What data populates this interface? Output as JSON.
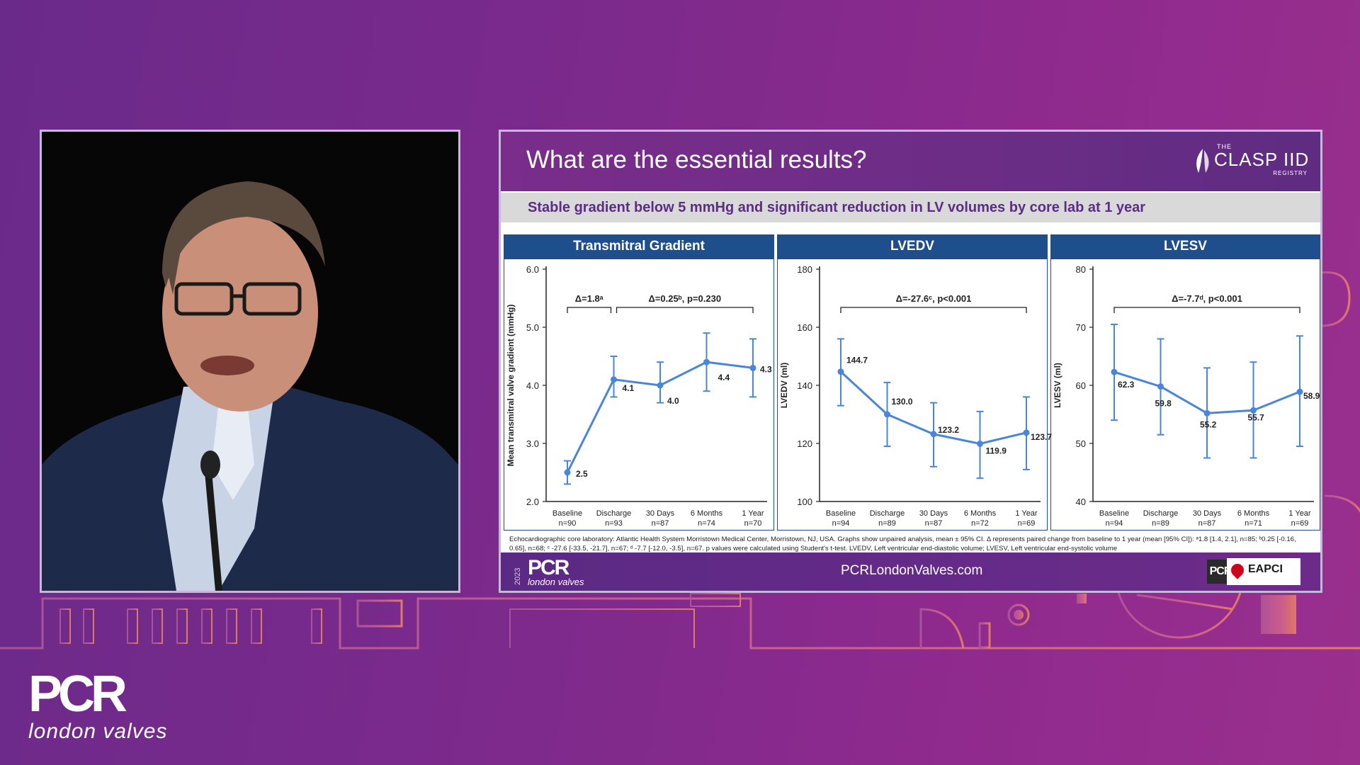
{
  "slide": {
    "title": "What are the essential results?",
    "subtitle": "Stable gradient below 5 mmHg and significant reduction in LV volumes by core lab at 1 year",
    "logo": {
      "the": "THE",
      "name": "CLASP IID",
      "registry": "REGISTRY"
    },
    "footnote": "Echocardiographic core laboratory: Atlantic Health System Morristown Medical Center, Morristown, NJ, USA. Graphs show unpaired analysis, mean ± 95% CI. Δ represents paired change from baseline to 1 year (mean [95% CI]): ᵃ1.8 [1.4, 2.1], n=85; ᵇ0.25 [-0.16, 0.65], n=68; ᶜ -27.6 [-33.5, -21.7], n=67; ᵈ -7.7 [-12.0, -3.5], n=67. p values were calculated using Student's t-test. LVEDV, Left ventricular end-diastolic volume; LVESV, Left ventricular end-systolic volume",
    "footer": {
      "year": "2023",
      "pcr": "PCR",
      "lv": "london valves",
      "url": "PCRLondonValves.com",
      "pcr_badge": "PCR",
      "eapci": "EAPCI"
    }
  },
  "brand": {
    "pcr": "PCR",
    "tagline": "london valves"
  },
  "colors": {
    "line": "#4a86d8",
    "panel_header": "#1f4e8c",
    "subtitle": "#5b2d86"
  },
  "chart_data": [
    {
      "type": "line",
      "title": "Transmitral Gradient",
      "ylabel": "Mean transmitral valve gradient (mmHg)",
      "ylim": [
        2.0,
        6.0
      ],
      "yticks": [
        "2.0",
        "3.0",
        "4.0",
        "5.0",
        "6.0"
      ],
      "categories": [
        "Baseline",
        "Discharge",
        "30 Days",
        "6 Months",
        "1 Year"
      ],
      "n": [
        "n=90",
        "n=93",
        "n=87",
        "n=74",
        "n=70"
      ],
      "values": [
        2.5,
        4.1,
        4.0,
        4.4,
        4.3
      ],
      "labels": [
        "2.5",
        "4.1",
        "4.0",
        "4.4",
        "4.3"
      ],
      "ci_low": [
        2.3,
        3.8,
        3.7,
        3.9,
        3.8
      ],
      "ci_high": [
        2.7,
        4.5,
        4.4,
        4.9,
        4.8
      ],
      "brackets": [
        {
          "from": 0,
          "to": 1,
          "text": "Δ=1.8ᵃ"
        },
        {
          "from": 1,
          "to": 4,
          "text": "Δ=0.25ᵇ, p=0.230"
        }
      ]
    },
    {
      "type": "line",
      "title": "LVEDV",
      "ylabel": "LVEDV (ml)",
      "ylim": [
        100,
        180
      ],
      "yticks": [
        "100",
        "120",
        "140",
        "160",
        "180"
      ],
      "categories": [
        "Baseline",
        "Discharge",
        "30 Days",
        "6 Months",
        "1 Year"
      ],
      "n": [
        "n=94",
        "n=89",
        "n=87",
        "n=72",
        "n=69"
      ],
      "values": [
        144.7,
        130.0,
        123.2,
        119.9,
        123.7
      ],
      "labels": [
        "144.7",
        "130.0",
        "123.2",
        "119.9",
        "123.7"
      ],
      "ci_low": [
        133,
        119,
        112,
        108,
        111
      ],
      "ci_high": [
        156,
        141,
        134,
        131,
        136
      ],
      "brackets": [
        {
          "from": 0,
          "to": 4,
          "text": "Δ=-27.6ᶜ, p<0.001"
        }
      ]
    },
    {
      "type": "line",
      "title": "LVESV",
      "ylabel": "LVESV (ml)",
      "ylim": [
        40,
        80
      ],
      "yticks": [
        "40",
        "50",
        "60",
        "70",
        "80"
      ],
      "categories": [
        "Baseline",
        "Discharge",
        "30 Days",
        "6 Months",
        "1 Year"
      ],
      "n": [
        "n=94",
        "n=89",
        "n=87",
        "n=71",
        "n=69"
      ],
      "values": [
        62.3,
        59.8,
        55.2,
        55.7,
        58.9
      ],
      "labels": [
        "62.3",
        "59.8",
        "55.2",
        "55.7",
        "58.9"
      ],
      "ci_low": [
        54,
        51.5,
        47.5,
        47.5,
        49.5
      ],
      "ci_high": [
        70.5,
        68,
        63,
        64,
        68.5
      ],
      "brackets": [
        {
          "from": 0,
          "to": 4,
          "text": "Δ=-7.7ᵈ, p<0.001"
        }
      ]
    }
  ]
}
